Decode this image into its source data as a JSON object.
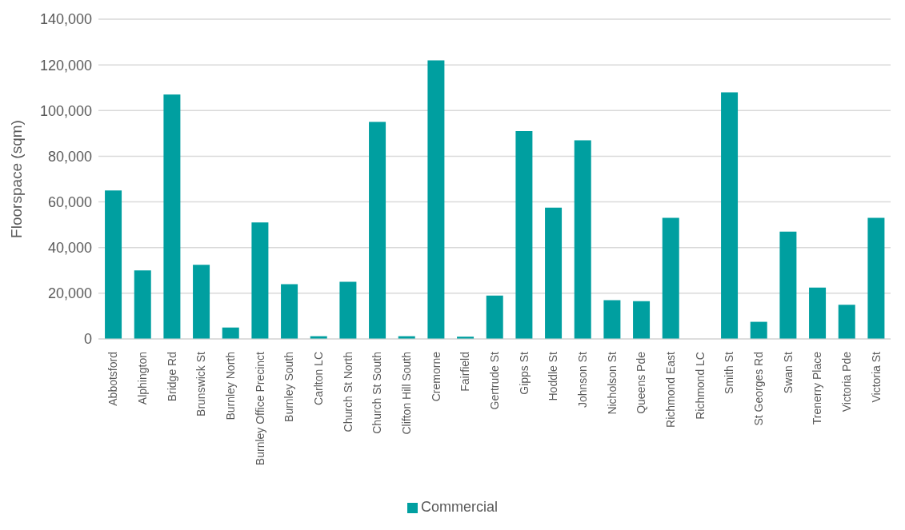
{
  "chart_data": {
    "type": "bar",
    "ylabel": "Floorspace (sqm)",
    "categories": [
      "Abbotsford",
      "Alphington",
      "Bridge Rd",
      "Brunswick St",
      "Burnley North",
      "Burnley Office Precinct",
      "Burnley South",
      "Carlton LC",
      "Church St North",
      "Church St South",
      "Clifton Hill South",
      "Cremorne",
      "Fairfield",
      "Gertrude St",
      "Gipps St",
      "Hoddle St",
      "Johnson St",
      "Nicholson St",
      "Queens Pde",
      "Richmond East",
      "Richmond LC",
      "Smith St",
      "St Georges Rd",
      "Swan St",
      "Trenerry Place",
      "Victoria Pde",
      "Victoria St"
    ],
    "series": [
      {
        "name": "Commercial",
        "color": "#009fa0",
        "values": [
          65000,
          30000,
          107000,
          32500,
          5000,
          51000,
          24000,
          1200,
          25000,
          95000,
          1200,
          122000,
          1000,
          19000,
          91000,
          57500,
          87000,
          17000,
          16500,
          53000,
          0,
          108000,
          7500,
          47000,
          22500,
          15000,
          53000
        ]
      }
    ],
    "ylim": [
      0,
      140000
    ],
    "yticks": [
      {
        "value": 0,
        "label": "0"
      },
      {
        "value": 20000,
        "label": "20,000"
      },
      {
        "value": 40000,
        "label": "40,000"
      },
      {
        "value": 60000,
        "label": "60,000"
      },
      {
        "value": 80000,
        "label": "80,000"
      },
      {
        "value": 100000,
        "label": "100,000"
      },
      {
        "value": 120000,
        "label": "120,000"
      },
      {
        "value": 140000,
        "label": "140,000"
      }
    ],
    "grid": "y",
    "legend": "bottom"
  }
}
